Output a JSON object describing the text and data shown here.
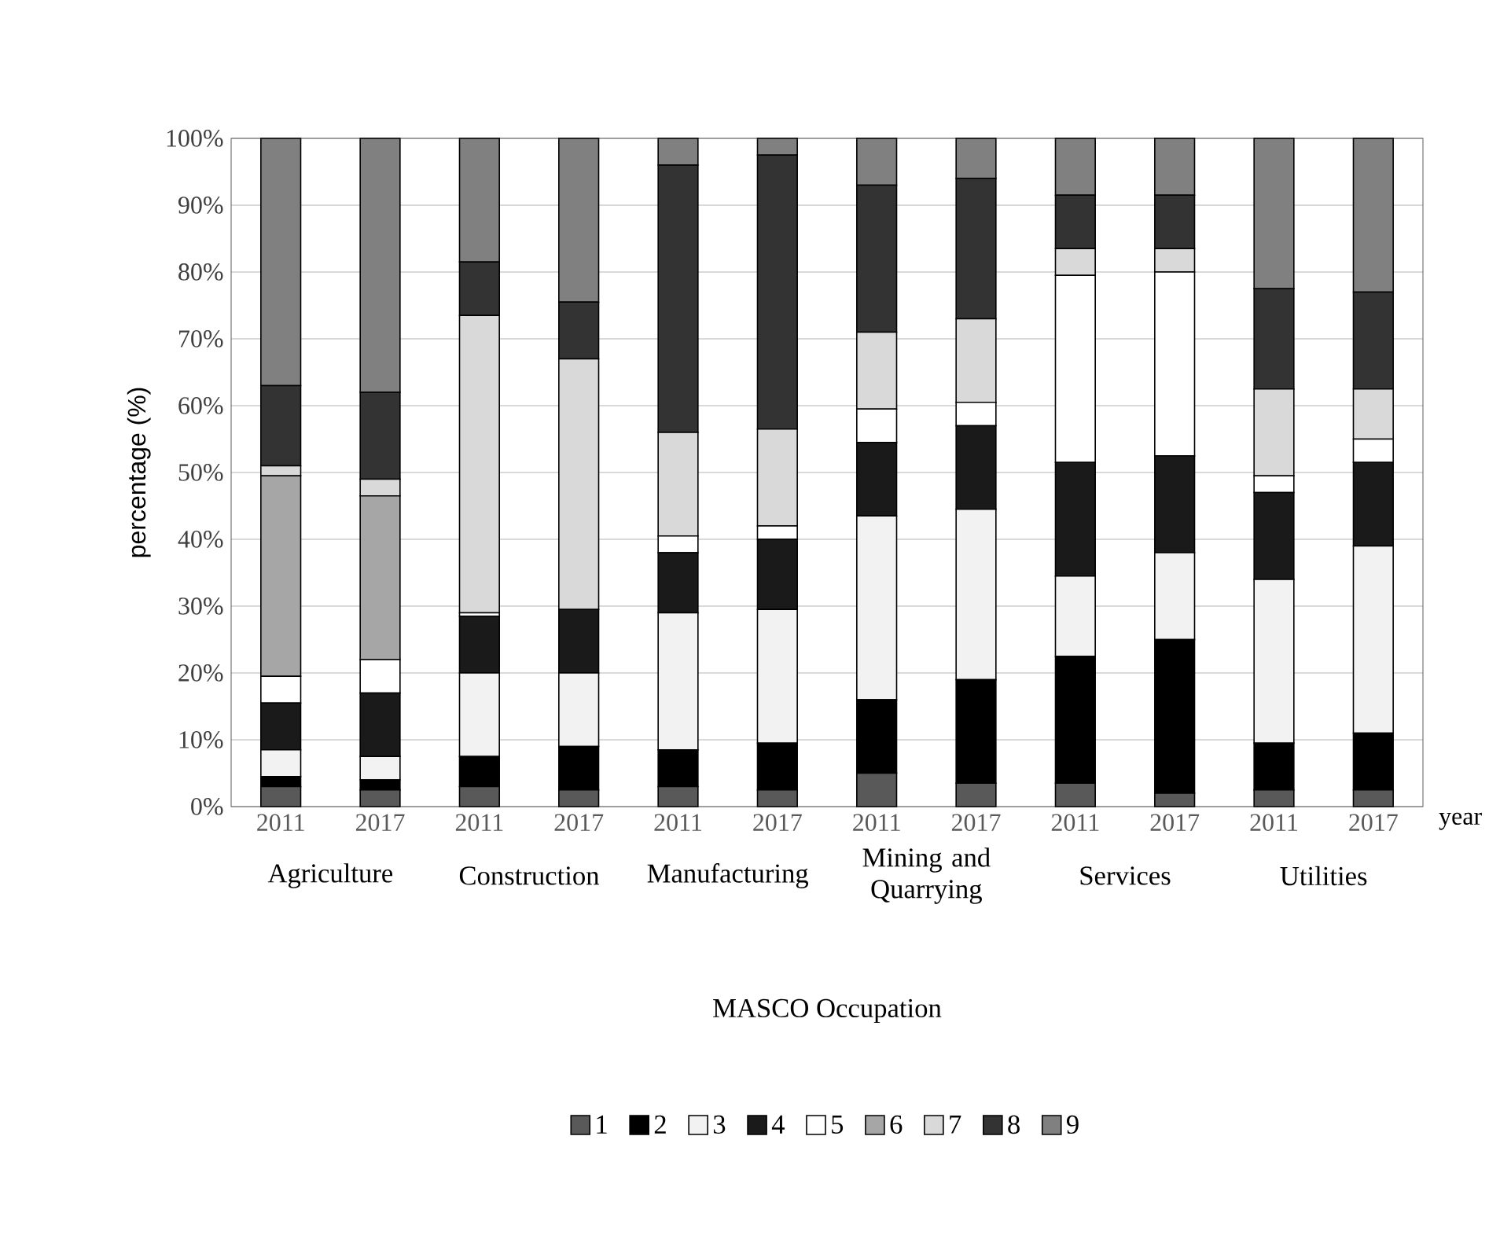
{
  "chart_data": {
    "type": "bar",
    "stacked": true,
    "xlabel": "year",
    "ylabel": "percentage (%)",
    "legend_title": "MASCO Occupation",
    "legend": "bottom",
    "grid": "y",
    "categories": [
      "2011",
      "2017",
      "2011",
      "2017",
      "2011",
      "2017",
      "2011",
      "2017",
      "2011",
      "2017",
      "2011",
      "2017"
    ],
    "annotations": [
      "Agriculture",
      "Construction",
      "Manufacturing",
      "Mining and Quarrying",
      "Services",
      "Utilities"
    ],
    "ylim": [
      0,
      100
    ],
    "yticks": [
      {
        "value": 0,
        "label": "0%"
      },
      {
        "value": 10,
        "label": "10%"
      },
      {
        "value": 20,
        "label": "20%"
      },
      {
        "value": 30,
        "label": "30%"
      },
      {
        "value": 40,
        "label": "40%"
      },
      {
        "value": 50,
        "label": "50%"
      },
      {
        "value": 60,
        "label": "60%"
      },
      {
        "value": 70,
        "label": "70%"
      },
      {
        "value": 80,
        "label": "80%"
      },
      {
        "value": 90,
        "label": "90%"
      },
      {
        "value": 100,
        "label": "100%"
      }
    ],
    "series": [
      {
        "name": "1",
        "color": "#595959",
        "values": [
          3,
          2.5,
          3,
          2.5,
          3,
          2.5,
          5,
          3.5,
          3.5,
          2,
          2.5,
          2.5
        ]
      },
      {
        "name": "2",
        "color": "#000000",
        "values": [
          1.5,
          1.5,
          4.5,
          6.5,
          5.5,
          7,
          11,
          15.5,
          19,
          23,
          7,
          8.5
        ]
      },
      {
        "name": "3",
        "color": "#f2f2f2",
        "values": [
          4,
          3.5,
          12.5,
          11,
          20.5,
          20,
          27.5,
          25.5,
          12,
          13,
          24.5,
          28
        ]
      },
      {
        "name": "4",
        "color": "#1a1a1a",
        "values": [
          7,
          9.5,
          8.5,
          9.5,
          9,
          10.5,
          11,
          12.5,
          17,
          14.5,
          13,
          12.5
        ]
      },
      {
        "name": "5",
        "color": "#ffffff",
        "values": [
          4,
          5,
          0.5,
          0,
          2.5,
          2,
          5,
          3.5,
          28,
          27.5,
          2.5,
          3.5
        ]
      },
      {
        "name": "6",
        "color": "#a6a6a6",
        "values": [
          30,
          24.5,
          0,
          0,
          0,
          0,
          0,
          0,
          0,
          0,
          0,
          0
        ]
      },
      {
        "name": "7",
        "color": "#d9d9d9",
        "values": [
          1.5,
          2.5,
          44.5,
          37.5,
          15.5,
          14.5,
          11.5,
          12.5,
          4,
          3.5,
          13,
          7.5
        ]
      },
      {
        "name": "8",
        "color": "#333333",
        "values": [
          12,
          13,
          8,
          8.5,
          40,
          41,
          22,
          21,
          8,
          8,
          15,
          14.5
        ]
      },
      {
        "name": "9",
        "color": "#808080",
        "values": [
          37,
          38,
          18.5,
          24.5,
          4,
          2.5,
          7,
          6,
          8.5,
          8.5,
          22.5,
          23
        ]
      }
    ]
  }
}
